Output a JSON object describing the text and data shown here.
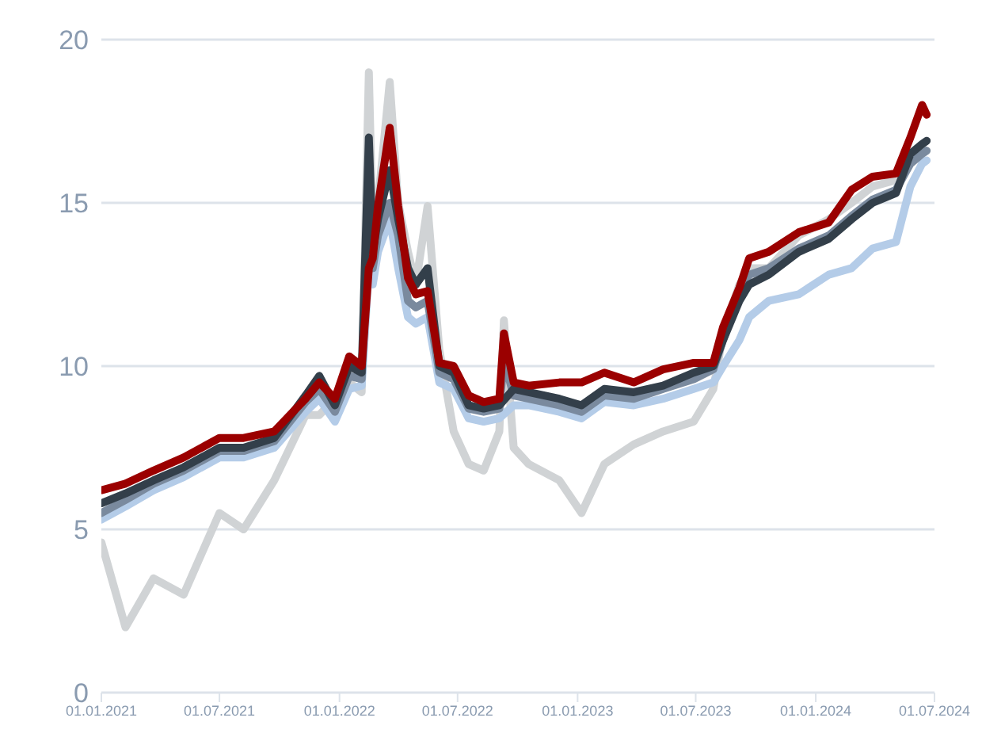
{
  "chart_data": {
    "type": "line",
    "x": [
      "2021-01-01",
      "2021-02-07",
      "2021-03-22",
      "2021-05-07",
      "2021-07-01",
      "2021-08-07",
      "2021-09-23",
      "2021-11-10",
      "2021-12-01",
      "2021-12-25",
      "2022-01-16",
      "2022-02-04",
      "2022-02-15",
      "2022-02-21",
      "2022-03-01",
      "2022-03-19",
      "2022-04-01",
      "2022-04-16",
      "2022-04-28",
      "2022-05-16",
      "2022-06-03",
      "2022-06-25",
      "2022-07-18",
      "2022-08-10",
      "2022-09-03",
      "2022-09-10",
      "2022-09-25",
      "2022-10-18",
      "2022-12-04",
      "2023-01-07",
      "2023-02-11",
      "2023-03-28",
      "2023-05-12",
      "2023-06-28",
      "2023-07-28",
      "2023-08-12",
      "2023-09-06",
      "2023-09-21",
      "2023-10-21",
      "2023-12-06",
      "2024-01-21",
      "2024-02-25",
      "2024-03-28",
      "2024-05-03",
      "2024-05-25",
      "2024-06-12",
      "2024-06-19"
    ],
    "series": [
      {
        "color": "#d0d3d5",
        "values": [
          4.6,
          2.0,
          3.5,
          3.0,
          5.5,
          5.0,
          6.5,
          8.5,
          8.5,
          9.0,
          9.5,
          9.2,
          19.0,
          14.0,
          15.0,
          18.7,
          15.0,
          13.5,
          12.5,
          14.9,
          10.5,
          8.0,
          7.0,
          6.8,
          8.0,
          11.4,
          7.5,
          7.0,
          6.5,
          5.5,
          7.0,
          7.6,
          8.0,
          8.3,
          9.3,
          11.0,
          12.5,
          13.0,
          13.0,
          14.0,
          14.5,
          15.0,
          15.5,
          15.7,
          16.5,
          16.8,
          16.9
        ]
      },
      {
        "color": "#b4cce8",
        "values": [
          5.3,
          5.7,
          6.2,
          6.6,
          7.2,
          7.2,
          7.5,
          8.6,
          9.0,
          8.3,
          9.3,
          9.4,
          13.0,
          12.5,
          13.5,
          14.5,
          13.0,
          11.5,
          11.3,
          11.5,
          9.5,
          9.3,
          8.4,
          8.3,
          8.4,
          null,
          8.8,
          8.8,
          8.6,
          8.4,
          8.9,
          8.8,
          9.0,
          9.3,
          9.5,
          10.0,
          10.8,
          11.5,
          12.0,
          12.2,
          12.8,
          13.0,
          13.6,
          13.8,
          15.5,
          16.2,
          16.3
        ]
      },
      {
        "color": "#7a8a9e",
        "values": [
          5.5,
          5.9,
          6.4,
          6.8,
          7.4,
          7.4,
          7.7,
          8.9,
          9.3,
          8.6,
          9.7,
          9.6,
          14.0,
          13.0,
          14.0,
          15.0,
          14.0,
          12.0,
          11.8,
          12.0,
          9.8,
          9.6,
          8.7,
          8.6,
          8.7,
          10.2,
          9.1,
          9.0,
          8.8,
          8.6,
          9.1,
          9.0,
          9.3,
          9.6,
          9.9,
          10.8,
          12.2,
          12.8,
          13.0,
          13.6,
          14.0,
          14.6,
          15.1,
          15.4,
          16.2,
          16.5,
          16.6
        ]
      },
      {
        "color": "#333f4a",
        "values": [
          5.8,
          6.1,
          6.5,
          6.9,
          7.5,
          7.5,
          7.8,
          9.1,
          9.7,
          8.8,
          10.0,
          9.8,
          17.0,
          13.5,
          14.5,
          16.0,
          14.5,
          13.0,
          12.5,
          13.0,
          10.0,
          9.8,
          8.8,
          8.7,
          8.8,
          null,
          9.3,
          9.2,
          9.0,
          8.8,
          9.3,
          9.2,
          9.4,
          9.8,
          10.0,
          10.8,
          12.0,
          12.5,
          12.8,
          13.5,
          13.9,
          14.5,
          15.0,
          15.3,
          16.5,
          16.8,
          16.9
        ]
      },
      {
        "color": "#9b0000",
        "values": [
          6.2,
          6.4,
          6.8,
          7.2,
          7.8,
          7.8,
          8.0,
          9.0,
          9.5,
          9.0,
          10.3,
          10.0,
          13.0,
          13.3,
          14.9,
          17.3,
          14.9,
          12.7,
          12.2,
          12.3,
          10.1,
          10.0,
          9.1,
          8.9,
          9.0,
          11.0,
          9.5,
          9.4,
          9.5,
          9.5,
          9.8,
          9.5,
          9.9,
          10.1,
          10.1,
          11.2,
          12.4,
          13.3,
          13.5,
          14.1,
          14.4,
          15.4,
          15.8,
          15.9,
          17.0,
          18.0,
          17.7
        ]
      }
    ],
    "xlim": [
      "2021-01-01",
      "2024-07-01"
    ],
    "xticks": [
      {
        "value": "2021-01-01",
        "label": "01.01.2021"
      },
      {
        "value": "2021-07-01",
        "label": "01.07.2021"
      },
      {
        "value": "2022-01-01",
        "label": "01.01.2022"
      },
      {
        "value": "2022-07-01",
        "label": "01.07.2022"
      },
      {
        "value": "2023-01-01",
        "label": "01.01.2023"
      },
      {
        "value": "2023-07-01",
        "label": "01.07.2023"
      },
      {
        "value": "2024-01-01",
        "label": "01.01.2024"
      },
      {
        "value": "2024-07-01",
        "label": "01.07.2024"
      }
    ],
    "ylim": [
      0,
      20
    ],
    "yticks": [
      0,
      5,
      10,
      15,
      20
    ],
    "grid": "y",
    "legend": false,
    "line_style": "solid",
    "marker": "none"
  }
}
